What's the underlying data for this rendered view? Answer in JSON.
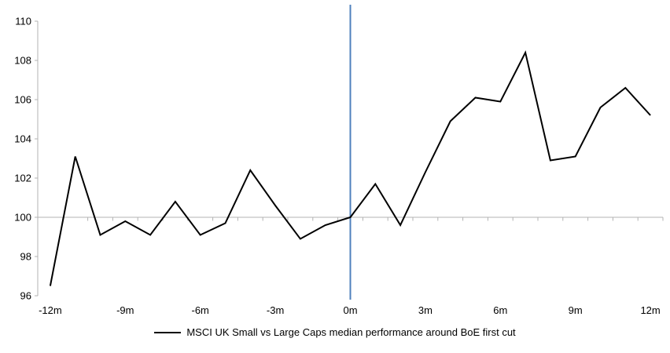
{
  "chart_data": {
    "type": "line",
    "title": "",
    "legend": "MSCI UK Small vs Large Caps median performance around BoE first cut",
    "legend_position": "bottom-center",
    "x": [
      -12,
      -11,
      -10,
      -9,
      -8,
      -7,
      -6,
      -5,
      -4,
      -3,
      -2,
      -1,
      0,
      1,
      2,
      3,
      4,
      5,
      6,
      7,
      8,
      9,
      10,
      11,
      12
    ],
    "series": [
      {
        "name": "MSCI UK Small vs Large Caps median performance around BoE first cut",
        "values": [
          96.5,
          103.1,
          99.1,
          99.8,
          99.1,
          100.8,
          99.1,
          99.7,
          102.4,
          100.6,
          98.9,
          99.6,
          100.0,
          101.7,
          99.6,
          102.3,
          104.9,
          106.1,
          105.9,
          108.4,
          102.9,
          103.1,
          105.6,
          106.6,
          105.2
        ]
      }
    ],
    "xlabel": "",
    "ylabel": "",
    "ylim": [
      96,
      110
    ],
    "y_ticks": [
      96,
      98,
      100,
      102,
      104,
      106,
      108,
      110
    ],
    "y_tick_labels": [
      "96",
      "98",
      "100",
      "102",
      "104",
      "106",
      "108",
      "110"
    ],
    "x_ticks": [
      {
        "pos": -12,
        "label": "-12m"
      },
      {
        "pos": -9,
        "label": "-9m"
      },
      {
        "pos": -6,
        "label": "-6m"
      },
      {
        "pos": -3,
        "label": "-3m"
      },
      {
        "pos": 0,
        "label": "0m"
      },
      {
        "pos": 3,
        "label": "3m"
      },
      {
        "pos": 6,
        "label": "6m"
      },
      {
        "pos": 9,
        "label": "9m"
      },
      {
        "pos": 12,
        "label": "12m"
      }
    ],
    "baseline_value": 100,
    "event_line_x": 0,
    "grid": "off",
    "colors": {
      "series": "#000000",
      "event_line": "#4f81bd",
      "axis": "#b3b3b3",
      "labels": "#000000"
    }
  }
}
